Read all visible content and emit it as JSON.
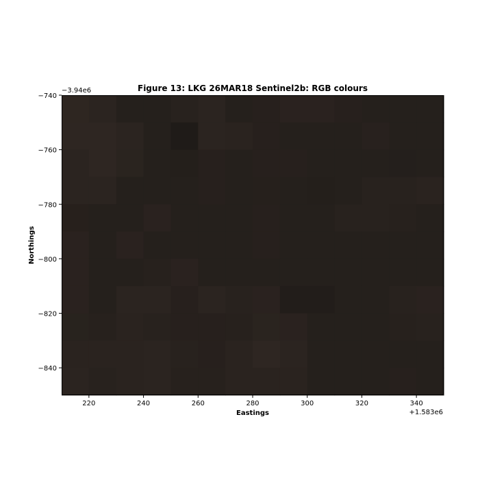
{
  "chart_data": {
    "type": "heatmap",
    "title": "Figure 13: LKG 26MAR18  Sentinel2b: RGB colours",
    "xlabel": "Eastings",
    "ylabel": "Northings",
    "x_offset_label": "+1.583e6",
    "y_offset_label": "−3.94e6",
    "xlim": [
      210,
      350
    ],
    "ylim": [
      -850,
      -740
    ],
    "x_ticks": [
      220,
      240,
      260,
      280,
      300,
      320,
      340
    ],
    "y_ticks": [
      -740,
      -760,
      -780,
      -800,
      -820,
      -840
    ],
    "x_tick_labels": [
      "220",
      "240",
      "260",
      "280",
      "300",
      "320",
      "340"
    ],
    "y_tick_labels": [
      "−740",
      "−760",
      "−780",
      "−800",
      "−820",
      "−840"
    ],
    "pixel_size": 10,
    "grid": false,
    "rows": [
      [
        "#2e2621",
        "#2b2420",
        "#25201c",
        "#25201c",
        "#28221e",
        "#2b2420",
        "#25201c",
        "#27201d",
        "#2a221f",
        "#2a221f",
        "#27201d",
        "#25201c",
        "#25201c",
        "#25201c"
      ],
      [
        "#2e2622",
        "#2e2622",
        "#2b2420",
        "#25201c",
        "#1f1b18",
        "#2b2420",
        "#2a231f",
        "#27201d",
        "#25201c",
        "#25201c",
        "#25201c",
        "#28211e",
        "#25201c",
        "#25201c"
      ],
      [
        "#2b2420",
        "#2e2622",
        "#2a241f",
        "#25201c",
        "#241f1b",
        "#27201d",
        "#25201c",
        "#27201d",
        "#27201d",
        "#25201c",
        "#25201c",
        "#25201c",
        "#241f1c",
        "#25201c"
      ],
      [
        "#2b2420",
        "#2b2420",
        "#25201c",
        "#25201c",
        "#25201c",
        "#27201d",
        "#25201c",
        "#26201c",
        "#25201c",
        "#241f1b",
        "#25201c",
        "#28221e",
        "#28221e",
        "#2a231f"
      ],
      [
        "#27201c",
        "#25201c",
        "#25201c",
        "#2a221f",
        "#25201c",
        "#25201c",
        "#25201c",
        "#27201d",
        "#25201c",
        "#25201c",
        "#28221e",
        "#28221e",
        "#27211d",
        "#25201c"
      ],
      [
        "#2a221f",
        "#25201c",
        "#2a221f",
        "#25201c",
        "#25201c",
        "#25201c",
        "#25201c",
        "#27201d",
        "#25201c",
        "#25201c",
        "#25201c",
        "#25201c",
        "#25201c",
        "#25201c"
      ],
      [
        "#2a221f",
        "#25201c",
        "#25201c",
        "#27211d",
        "#2a221f",
        "#25201c",
        "#25201c",
        "#25201c",
        "#25201c",
        "#25201c",
        "#25201c",
        "#25201c",
        "#25201c",
        "#25201c"
      ],
      [
        "#2a221f",
        "#25201c",
        "#2b2420",
        "#2b2420",
        "#27201d",
        "#2b2420",
        "#28221e",
        "#2a221f",
        "#221d1a",
        "#221d1a",
        "#25201c",
        "#25201c",
        "#28221e",
        "#2a221f"
      ],
      [
        "#28231e",
        "#27211d",
        "#2a231f",
        "#28221e",
        "#27201d",
        "#27201d",
        "#27211d",
        "#2a241f",
        "#2a221f",
        "#25201c",
        "#25201c",
        "#25201c",
        "#27211d",
        "#28221e"
      ],
      [
        "#2a231f",
        "#2a231f",
        "#2a231f",
        "#2b2420",
        "#28221e",
        "#27201d",
        "#2a231f",
        "#2e2622",
        "#2b2420",
        "#25201c",
        "#25201c",
        "#25201c",
        "#25201c",
        "#25201c"
      ],
      [
        "#2b2420",
        "#28221e",
        "#2a231f",
        "#2b2420",
        "#27211d",
        "#27211d",
        "#2a231f",
        "#2a231f",
        "#2a231f",
        "#25201c",
        "#25201c",
        "#25201c",
        "#27201d",
        "#25201c"
      ]
    ]
  }
}
